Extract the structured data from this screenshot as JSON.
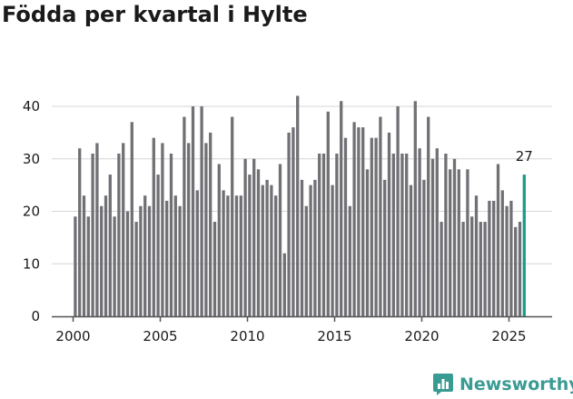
{
  "page_title": "Födda per kvartal i Hylte",
  "brand": {
    "name": "Newsworthy",
    "color": "#3a9b93",
    "icon": "newsworthy-chart-bubble-icon"
  },
  "colors": {
    "bar": "#717075",
    "highlight": "#1a9c8c",
    "grid": "#d6d6d6",
    "axis": "#555555",
    "text": "#1a1a1a"
  },
  "chart_data": {
    "type": "bar",
    "title": "Födda per kvartal i Hylte",
    "xlabel": "",
    "ylabel": "",
    "x_start": "2000 Q1",
    "period": "quarter",
    "ylim": [
      0,
      45
    ],
    "yticks": [
      "0",
      "10",
      "20",
      "30",
      "40"
    ],
    "ytick_values": [
      0,
      10,
      20,
      30,
      40
    ],
    "xticks": [
      "2000",
      "2005",
      "2010",
      "2015",
      "2020",
      "2025"
    ],
    "grid": true,
    "highlight_last": true,
    "last_label": "27",
    "values": [
      19,
      32,
      23,
      19,
      31,
      33,
      21,
      23,
      27,
      19,
      31,
      33,
      20,
      37,
      18,
      21,
      23,
      21,
      34,
      27,
      33,
      22,
      31,
      23,
      21,
      38,
      33,
      40,
      24,
      40,
      33,
      35,
      18,
      29,
      24,
      23,
      38,
      23,
      23,
      30,
      27,
      30,
      28,
      25,
      26,
      25,
      23,
      29,
      12,
      35,
      36,
      42,
      26,
      21,
      25,
      26,
      31,
      31,
      39,
      25,
      31,
      41,
      34,
      21,
      37,
      36,
      36,
      28,
      34,
      34,
      38,
      26,
      35,
      31,
      40,
      31,
      31,
      25,
      41,
      32,
      26,
      38,
      30,
      32,
      18,
      31,
      28,
      30,
      28,
      18,
      28,
      19,
      23,
      18,
      18,
      22,
      22,
      29,
      24,
      21,
      22,
      17,
      18,
      27
    ]
  }
}
